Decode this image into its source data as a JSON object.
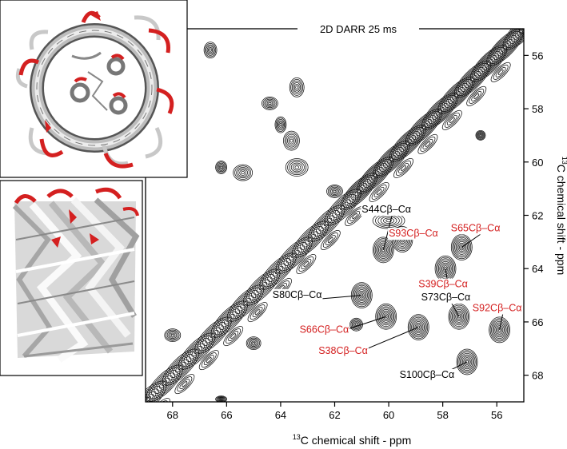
{
  "chart_data": {
    "type": "contour",
    "title": "2D DARR 25 ms",
    "xlabel": {
      "sup": "13",
      "text": "C chemical shift - ppm"
    },
    "ylabel": {
      "sup": "13",
      "text": "C chemical shift - ppm"
    },
    "xlim": [
      69,
      55
    ],
    "ylim": [
      69,
      55
    ],
    "x_ticks": [
      68,
      66,
      64,
      62,
      60,
      58,
      56
    ],
    "y_ticks": [
      56,
      58,
      60,
      62,
      64,
      66,
      68
    ],
    "colors": {
      "contour": "#000000",
      "highlight": "#d42020",
      "normal": "#000000"
    },
    "peaks": [
      {
        "label": "S44Cβ–Cα",
        "highlighted": false,
        "x": 60.2,
        "y": 63.3,
        "text_x": 61.0,
        "text_y": 61.9
      },
      {
        "label": "S93Cβ–Cα",
        "highlighted": true,
        "x": 59.5,
        "y": 62.9,
        "text_x": 60.0,
        "text_y": 62.8
      },
      {
        "label": "S65Cβ–Cα",
        "highlighted": true,
        "x": 57.3,
        "y": 63.2,
        "text_x": 57.7,
        "text_y": 62.6
      },
      {
        "label": "S39Cβ–Cα",
        "highlighted": true,
        "x": 57.9,
        "y": 64.0,
        "text_x": 58.9,
        "text_y": 64.7
      },
      {
        "label": "S73Cβ–Cα",
        "highlighted": false,
        "x": 57.4,
        "y": 65.8,
        "text_x": 58.8,
        "text_y": 65.2
      },
      {
        "label": "S80Cβ–Cα",
        "highlighted": false,
        "x": 61.0,
        "y": 65.0,
        "text_x": 64.3,
        "text_y": 65.1
      },
      {
        "label": "S92Cβ–Cα",
        "highlighted": true,
        "x": 55.9,
        "y": 66.3,
        "text_x": 56.9,
        "text_y": 65.6
      },
      {
        "label": "S66Cβ–Cα",
        "highlighted": true,
        "x": 60.1,
        "y": 65.8,
        "text_x": 63.3,
        "text_y": 66.4
      },
      {
        "label": "S38Cβ–Cα",
        "highlighted": true,
        "x": 58.9,
        "y": 66.2,
        "text_x": 62.6,
        "text_y": 67.2
      },
      {
        "label": "S100Cβ–Cα",
        "highlighted": false,
        "x": 57.1,
        "y": 67.5,
        "text_x": 59.6,
        "text_y": 68.1
      }
    ]
  }
}
